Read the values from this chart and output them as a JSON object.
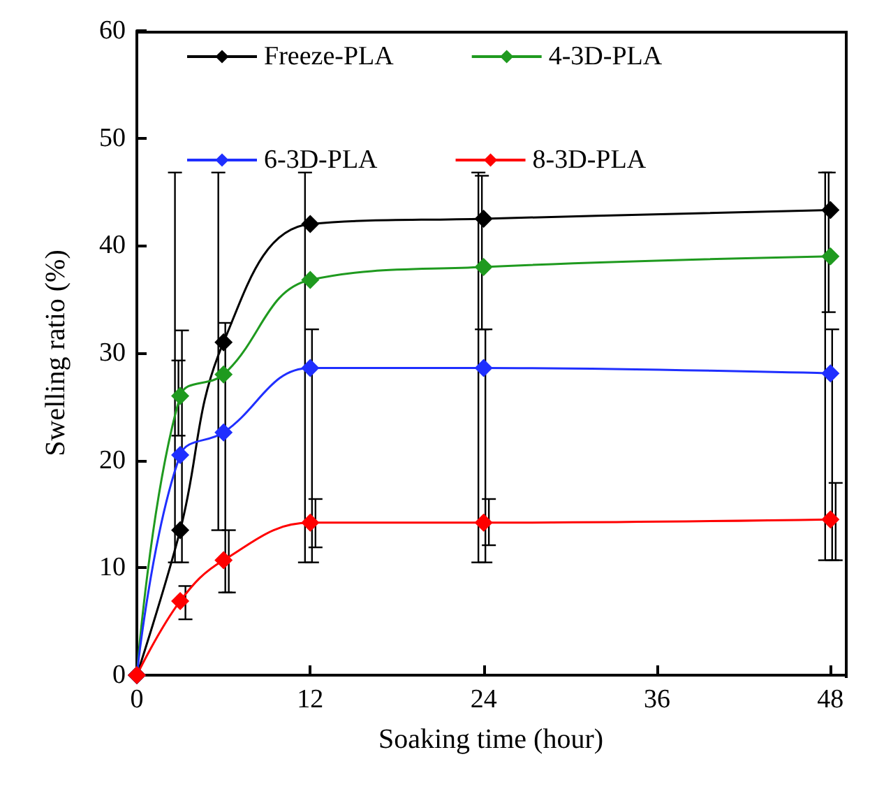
{
  "chart_data": {
    "type": "line",
    "xlabel": "Soaking time (hour)",
    "ylabel": "Swelling ratio (%)",
    "x": [
      0,
      3,
      6,
      12,
      24,
      48
    ],
    "xlim": [
      0,
      49
    ],
    "xticks": [
      0,
      12,
      24,
      36,
      48
    ],
    "ylim": [
      0,
      60
    ],
    "yticks": [
      0,
      10,
      20,
      30,
      40,
      50,
      60
    ],
    "grid": false,
    "legend": "top",
    "marker": "diamond",
    "line_style": "solid",
    "series": [
      {
        "name": "Freeze-PLA",
        "color": "#000000",
        "values": [
          0,
          13.5,
          31,
          42,
          42.5,
          43.3
        ],
        "errors": [
          null,
          [
            10.5,
            46.8
          ],
          [
            13.5,
            46.8
          ],
          [
            10.5,
            46.8
          ],
          [
            10.5,
            46.8
          ],
          [
            10.7,
            46.8
          ]
        ]
      },
      {
        "name": "4-3D-PLA",
        "color": "#1f9a1f",
        "values": [
          0,
          26,
          28,
          36.8,
          38,
          39
        ],
        "errors": [
          null,
          [
            22.3,
            29.3
          ],
          null,
          null,
          [
            32.2,
            46.5
          ],
          [
            33.8,
            46.8
          ]
        ]
      },
      {
        "name": "6-3D-PLA",
        "color": "#1f2fff",
        "values": [
          0,
          20.5,
          22.6,
          28.6,
          28.6,
          28.1
        ],
        "errors": [
          null,
          [
            10.5,
            32.1
          ],
          [
            7.7,
            32.8
          ],
          [
            10.5,
            32.2
          ],
          [
            10.5,
            32.2
          ],
          [
            10.7,
            32.2
          ]
        ]
      },
      {
        "name": "8-3D-PLA",
        "color": "#ff0000",
        "values": [
          0,
          6.9,
          10.7,
          14.2,
          14.2,
          14.5
        ],
        "errors": [
          null,
          [
            5.2,
            8.3
          ],
          [
            7.7,
            13.5
          ],
          [
            11.9,
            16.4
          ],
          [
            12.1,
            16.4
          ],
          [
            10.7,
            17.9
          ]
        ]
      }
    ]
  }
}
